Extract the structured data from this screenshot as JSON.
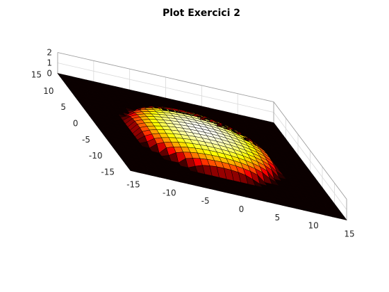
{
  "chart_data": {
    "type": "surface",
    "title": "Plot Exercici 2",
    "xlabel": "",
    "ylabel": "",
    "zlabel": "",
    "x_ticks": [
      "-15",
      "-10",
      "-5",
      "0",
      "5",
      "10",
      "15"
    ],
    "y_ticks": [
      "-15",
      "-10",
      "-5",
      "0",
      "5",
      "10",
      "15"
    ],
    "z_ticks": [
      "0",
      "1",
      "2"
    ],
    "xlim": [
      -15,
      15
    ],
    "ylim": [
      -15,
      15
    ],
    "zlim": [
      0,
      2
    ],
    "colormap": "hot",
    "grid": true,
    "surface": {
      "x_range": [
        -15,
        15
      ],
      "y_range": [
        -15,
        15
      ],
      "grid_step": 1,
      "function": "z = sqrt(max(0, 1.7^2 * (1 - (x^2 + y^2) / 10^2)))",
      "peak_z": 1.7,
      "support_radius": 10
    }
  }
}
